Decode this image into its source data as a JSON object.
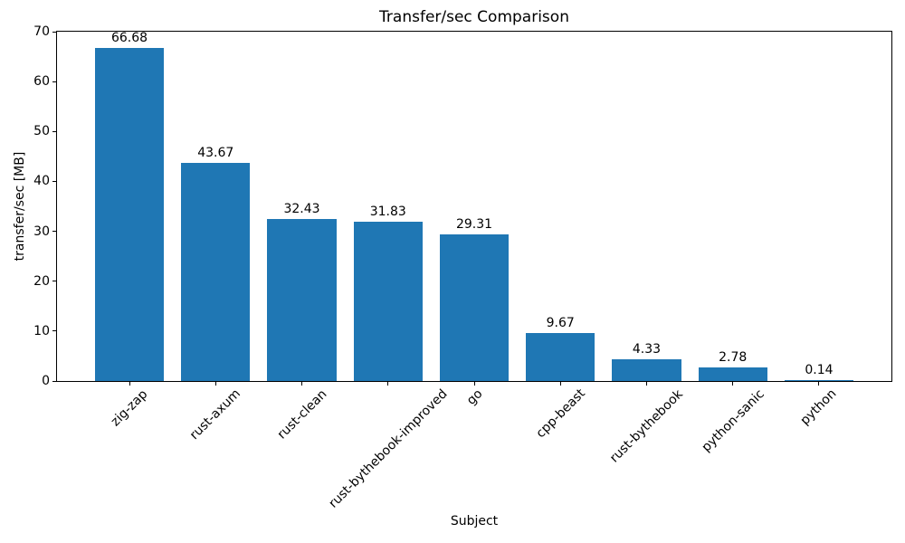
{
  "chart_data": {
    "type": "bar",
    "title": "Transfer/sec Comparison",
    "xlabel": "Subject",
    "ylabel": "transfer/sec [MB]",
    "categories": [
      "zig-zap",
      "rust-axum",
      "rust-clean",
      "rust-bythebook-improved",
      "go",
      "cpp-beast",
      "rust-bythebook",
      "python-sanic",
      "python"
    ],
    "values": [
      66.68,
      43.67,
      32.43,
      31.83,
      29.31,
      9.67,
      4.33,
      2.78,
      0.14
    ],
    "value_labels": [
      "66.68",
      "43.67",
      "32.43",
      "31.83",
      "29.31",
      "9.67",
      "4.33",
      "2.78",
      "0.14"
    ],
    "bar_color": "#1f77b4",
    "axis_color": "#000000",
    "text_color": "#000000",
    "ylim": [
      0,
      70
    ],
    "yticks": [
      0,
      10,
      20,
      30,
      40,
      50,
      60,
      70
    ],
    "xtick_rotation_deg": 45,
    "grid": false,
    "legend_position": "none"
  }
}
